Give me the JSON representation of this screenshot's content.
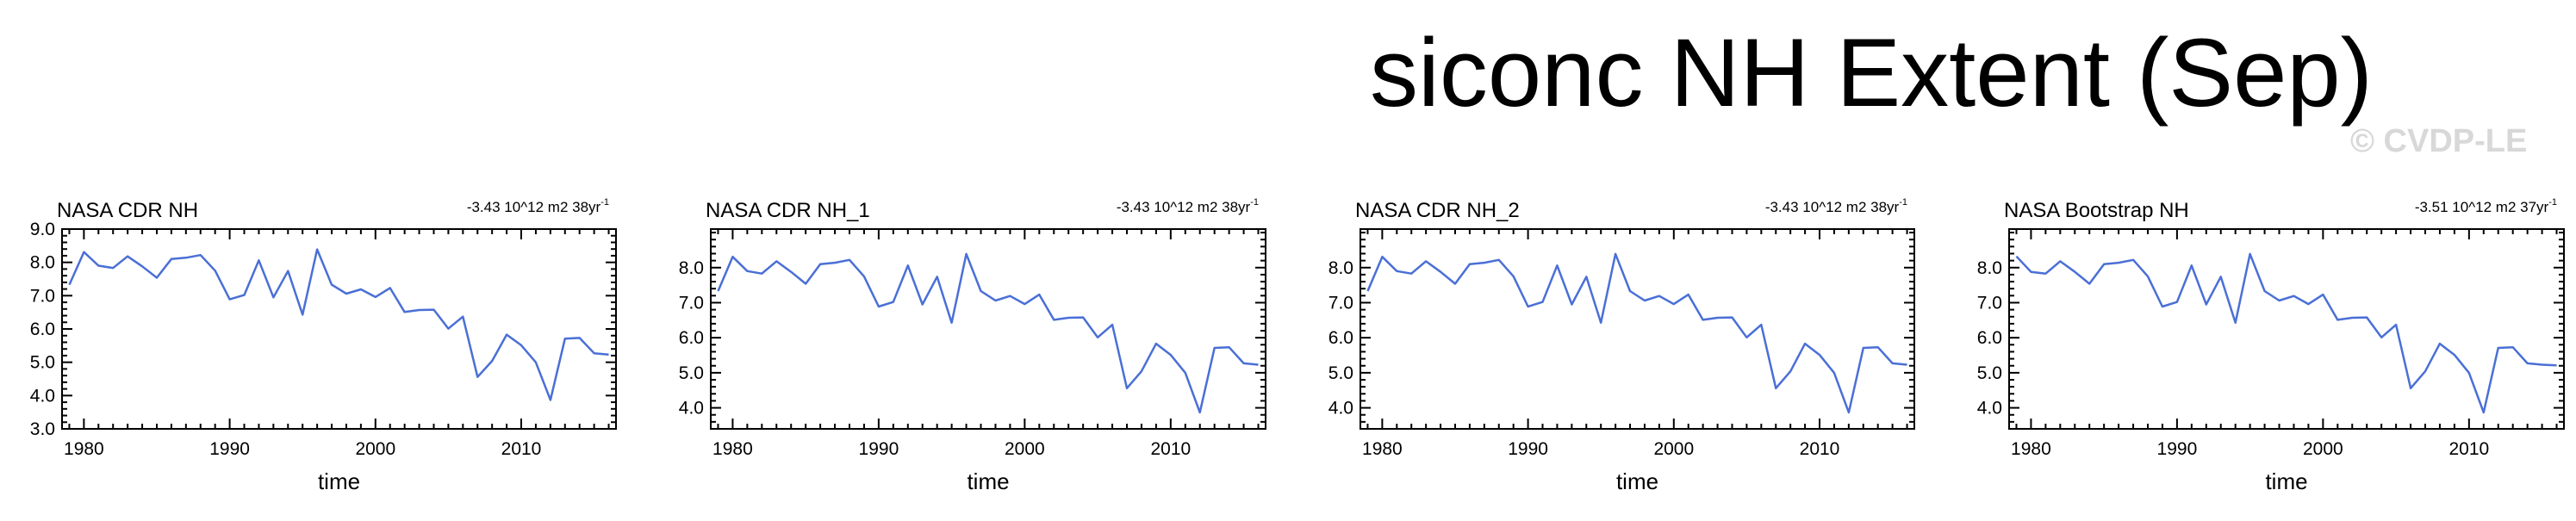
{
  "figure": {
    "title": "siconc NH Extent (Sep)",
    "watermark": "© CVDP-LE"
  },
  "style": {
    "line_color": "#4a6fd6",
    "axis_color": "#000000"
  },
  "chart_data": [
    {
      "type": "line",
      "title": "NASA CDR NH",
      "trend_label": "-3.43 10^12 m2 38yr",
      "trend_superscript": "-1",
      "xlabel": "time",
      "ylabel": "",
      "xlim": [
        1978.5,
        2016.5
      ],
      "ylim": [
        3.0,
        9.0
      ],
      "xticks": [
        1980,
        1990,
        2000,
        2010
      ],
      "yticks": [
        3.0,
        4.0,
        5.0,
        6.0,
        7.0,
        8.0,
        9.0
      ],
      "ytick_labels": [
        "3.0",
        "4.0",
        "5.0",
        "6.0",
        "7.0",
        "8.0",
        "9.0"
      ],
      "grid": false,
      "x": [
        1979,
        1980,
        1981,
        1982,
        1983,
        1984,
        1985,
        1986,
        1987,
        1988,
        1989,
        1990,
        1991,
        1992,
        1993,
        1994,
        1995,
        1996,
        1997,
        1998,
        1999,
        2000,
        2001,
        2002,
        2003,
        2004,
        2005,
        2006,
        2007,
        2008,
        2009,
        2010,
        2011,
        2012,
        2013,
        2014,
        2015,
        2016
      ],
      "series": [
        {
          "values": [
            7.33,
            8.31,
            7.9,
            7.83,
            8.18,
            7.88,
            7.54,
            8.1,
            8.14,
            8.22,
            7.75,
            6.89,
            7.02,
            8.06,
            6.95,
            7.74,
            6.43,
            8.39,
            7.33,
            7.06,
            7.19,
            6.96,
            7.23,
            6.51,
            6.57,
            6.58,
            6.01,
            6.37,
            4.56,
            5.04,
            5.83,
            5.51,
            5.0,
            3.87,
            5.71,
            5.73,
            5.27,
            5.23
          ]
        }
      ]
    },
    {
      "type": "line",
      "title": "NASA CDR NH_1",
      "trend_label": "-3.43 10^12 m2 38yr",
      "trend_superscript": "-1",
      "xlabel": "time",
      "ylabel": "",
      "xlim": [
        1978.5,
        2016.5
      ],
      "ylim": [
        3.4,
        9.1
      ],
      "xticks": [
        1980,
        1990,
        2000,
        2010
      ],
      "yticks": [
        4.0,
        5.0,
        6.0,
        7.0,
        8.0
      ],
      "ytick_labels": [
        "4.0",
        "5.0",
        "6.0",
        "7.0",
        "8.0"
      ],
      "grid": false,
      "x": [
        1979,
        1980,
        1981,
        1982,
        1983,
        1984,
        1985,
        1986,
        1987,
        1988,
        1989,
        1990,
        1991,
        1992,
        1993,
        1994,
        1995,
        1996,
        1997,
        1998,
        1999,
        2000,
        2001,
        2002,
        2003,
        2004,
        2005,
        2006,
        2007,
        2008,
        2009,
        2010,
        2011,
        2012,
        2013,
        2014,
        2015,
        2016
      ],
      "series": [
        {
          "values": [
            7.33,
            8.31,
            7.9,
            7.83,
            8.18,
            7.88,
            7.54,
            8.1,
            8.14,
            8.22,
            7.75,
            6.89,
            7.02,
            8.06,
            6.95,
            7.74,
            6.43,
            8.39,
            7.33,
            7.06,
            7.19,
            6.96,
            7.23,
            6.51,
            6.57,
            6.58,
            6.01,
            6.37,
            4.56,
            5.04,
            5.83,
            5.51,
            5.0,
            3.87,
            5.71,
            5.73,
            5.27,
            5.23
          ]
        }
      ]
    },
    {
      "type": "line",
      "title": "NASA CDR NH_2",
      "trend_label": "-3.43 10^12 m2 38yr",
      "trend_superscript": "-1",
      "xlabel": "time",
      "ylabel": "",
      "xlim": [
        1978.5,
        2016.5
      ],
      "ylim": [
        3.4,
        9.1
      ],
      "xticks": [
        1980,
        1990,
        2000,
        2010
      ],
      "yticks": [
        4.0,
        5.0,
        6.0,
        7.0,
        8.0
      ],
      "ytick_labels": [
        "4.0",
        "5.0",
        "6.0",
        "7.0",
        "8.0"
      ],
      "grid": false,
      "x": [
        1979,
        1980,
        1981,
        1982,
        1983,
        1984,
        1985,
        1986,
        1987,
        1988,
        1989,
        1990,
        1991,
        1992,
        1993,
        1994,
        1995,
        1996,
        1997,
        1998,
        1999,
        2000,
        2001,
        2002,
        2003,
        2004,
        2005,
        2006,
        2007,
        2008,
        2009,
        2010,
        2011,
        2012,
        2013,
        2014,
        2015,
        2016
      ],
      "series": [
        {
          "values": [
            7.33,
            8.31,
            7.9,
            7.83,
            8.18,
            7.88,
            7.54,
            8.1,
            8.14,
            8.22,
            7.75,
            6.89,
            7.02,
            8.06,
            6.95,
            7.74,
            6.43,
            8.39,
            7.33,
            7.06,
            7.19,
            6.96,
            7.23,
            6.51,
            6.57,
            6.58,
            6.01,
            6.37,
            4.56,
            5.04,
            5.83,
            5.51,
            5.0,
            3.87,
            5.71,
            5.73,
            5.27,
            5.23
          ]
        }
      ]
    },
    {
      "type": "line",
      "title": "NASA Bootstrap NH",
      "trend_label": "-3.51 10^12 m2 37yr",
      "trend_superscript": "-1",
      "xlabel": "time",
      "ylabel": "",
      "xlim": [
        1978.5,
        2016.5
      ],
      "ylim": [
        3.4,
        9.1
      ],
      "xticks": [
        1980,
        1990,
        2000,
        2010
      ],
      "yticks": [
        4.0,
        5.0,
        6.0,
        7.0,
        8.0
      ],
      "ytick_labels": [
        "4.0",
        "5.0",
        "6.0",
        "7.0",
        "8.0"
      ],
      "grid": false,
      "x": [
        1979,
        1980,
        1981,
        1982,
        1983,
        1984,
        1985,
        1986,
        1987,
        1988,
        1989,
        1990,
        1991,
        1992,
        1993,
        1994,
        1995,
        1996,
        1997,
        1998,
        1999,
        2000,
        2001,
        2002,
        2003,
        2004,
        2005,
        2006,
        2007,
        2008,
        2009,
        2010,
        2011,
        2012,
        2013,
        2014,
        2015,
        2016
      ],
      "series": [
        {
          "values": [
            8.32,
            7.88,
            7.83,
            8.18,
            7.88,
            7.54,
            8.1,
            8.14,
            8.22,
            7.75,
            6.89,
            7.02,
            8.06,
            6.95,
            7.74,
            6.43,
            8.39,
            7.33,
            7.06,
            7.19,
            6.96,
            7.23,
            6.51,
            6.57,
            6.58,
            6.01,
            6.37,
            4.56,
            5.04,
            5.83,
            5.51,
            5.0,
            3.87,
            5.71,
            5.73,
            5.27,
            5.23,
            5.21
          ]
        }
      ]
    }
  ]
}
